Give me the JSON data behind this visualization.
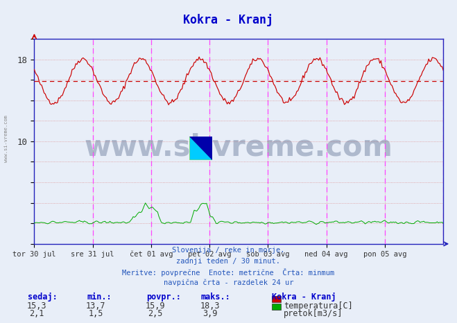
{
  "title": "Kokra - Kranj",
  "title_color": "#0000cc",
  "bg_color": "#e8eef8",
  "plot_bg_color": "#e8eef8",
  "ylim": [
    0,
    20
  ],
  "temp_avg": 15.9,
  "temp_color": "#cc0000",
  "flow_color": "#00aa00",
  "avg_line_color": "#cc0000",
  "vline_color": "#ff44ff",
  "grid_color": "#dd8888",
  "axis_color": "#2222bb",
  "watermark_text": "www.si-vreme.com",
  "watermark_color": "#1a3060",
  "footer_line1": "Slovenija / reke in morje.",
  "footer_line2": "zadnji teden / 30 minut.",
  "footer_line3": "Meritve: povprečne  Enote: metrične  Črta: minmum",
  "footer_line4": "navpična črta - razdelek 24 ur",
  "xlabel_days": [
    "tor 30 jul",
    "sre 31 jul",
    "čet 01 avg",
    "pet 02 avg",
    "sob 03 avg",
    "ned 04 avg",
    "pon 05 avg"
  ],
  "legend_title": "Kokra - Kranj",
  "legend_temp": "temperatura[C]",
  "legend_flow": "pretok[m3/s]",
  "table_headers": [
    "sedaj:",
    "min.:",
    "povpr.:",
    "maks.:"
  ],
  "table_temp": [
    "15,3",
    "13,7",
    "15,9",
    "18,3"
  ],
  "table_flow": [
    "2,1",
    "1,5",
    "2,5",
    "3,9"
  ],
  "n_days": 7,
  "n_per_day": 48,
  "temp_base": 15.9,
  "temp_amp": 2.15,
  "temp_phase": 0.58,
  "flow_base": 2.1,
  "sidebar_text": "www.si-vreme.com"
}
